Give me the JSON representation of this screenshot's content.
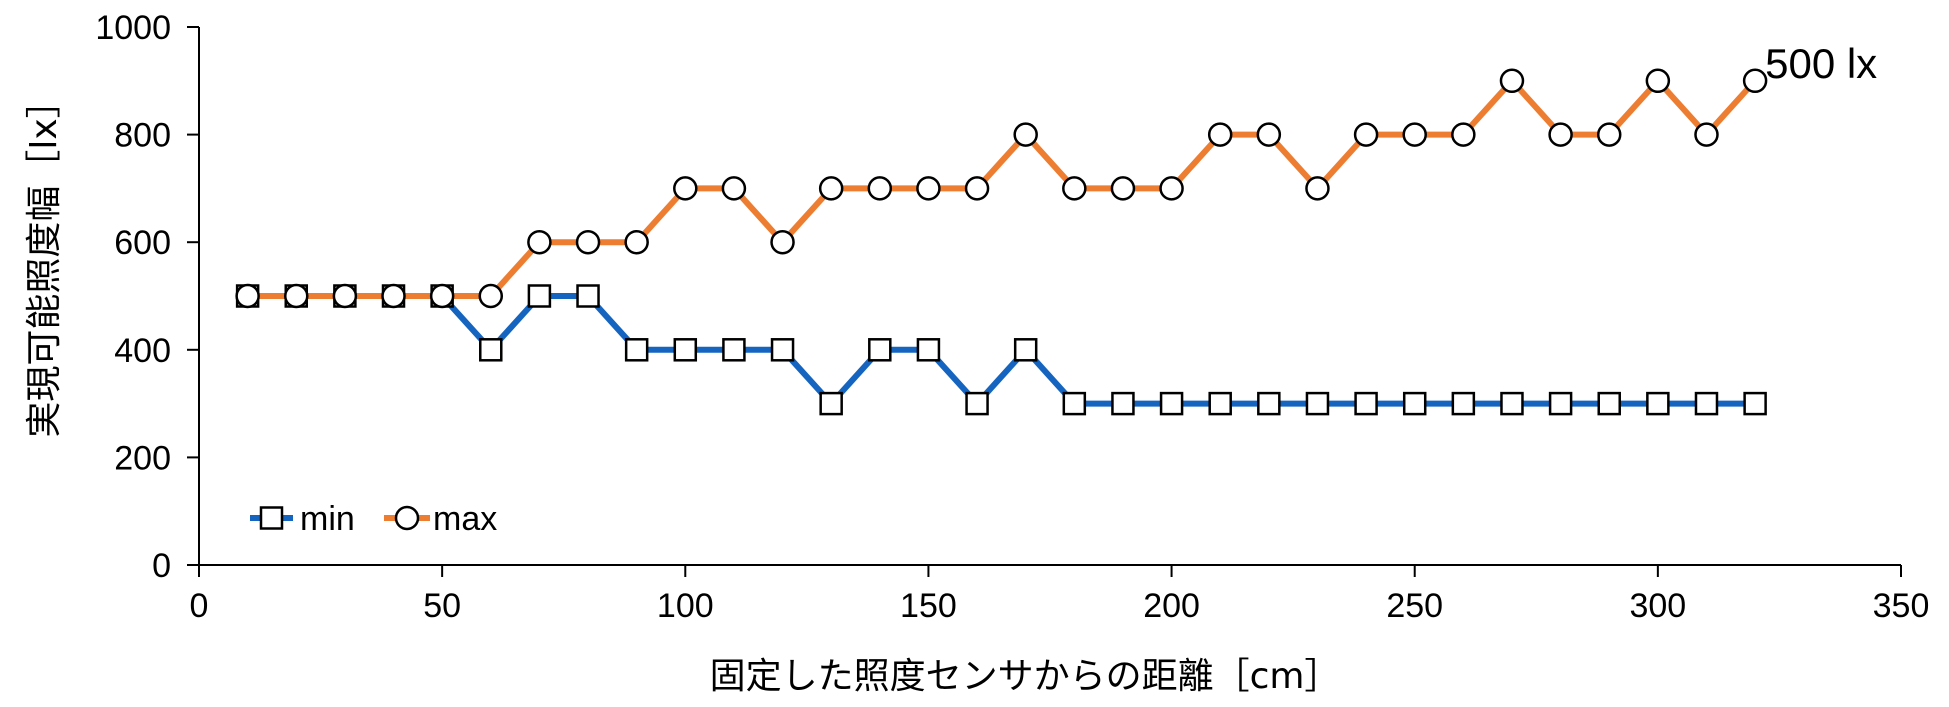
{
  "chart_data": {
    "type": "line",
    "xlabel": "固定した照度センサからの距離［cm］",
    "ylabel": "実現可能照度幅［lx］",
    "xlim": [
      0,
      350
    ],
    "ylim": [
      0,
      1000
    ],
    "xticks": [
      0,
      50,
      100,
      150,
      200,
      250,
      300,
      350
    ],
    "yticks": [
      0,
      200,
      400,
      600,
      800,
      1000
    ],
    "grid": false,
    "legend": "bottom-left",
    "x": [
      10,
      20,
      30,
      40,
      50,
      60,
      70,
      80,
      90,
      100,
      110,
      120,
      130,
      140,
      150,
      160,
      170,
      180,
      190,
      200,
      210,
      220,
      230,
      240,
      250,
      260,
      270,
      280,
      290,
      300,
      310,
      320
    ],
    "series": [
      {
        "name": "min",
        "marker": "square",
        "color": "#1565C0",
        "values": [
          500,
          500,
          500,
          500,
          500,
          400,
          500,
          500,
          400,
          400,
          400,
          400,
          300,
          400,
          400,
          300,
          400,
          300,
          300,
          300,
          300,
          300,
          300,
          300,
          300,
          300,
          300,
          300,
          300,
          300,
          300,
          300
        ]
      },
      {
        "name": "max",
        "marker": "circle",
        "color": "#ED7D31",
        "values": [
          500,
          500,
          500,
          500,
          500,
          500,
          600,
          600,
          600,
          700,
          700,
          600,
          700,
          700,
          700,
          700,
          800,
          700,
          700,
          700,
          800,
          800,
          700,
          800,
          800,
          800,
          900,
          800,
          800,
          900,
          800,
          900
        ]
      }
    ],
    "annotations": [
      {
        "text": "500 lx",
        "x": 320,
        "y": 900
      }
    ]
  }
}
